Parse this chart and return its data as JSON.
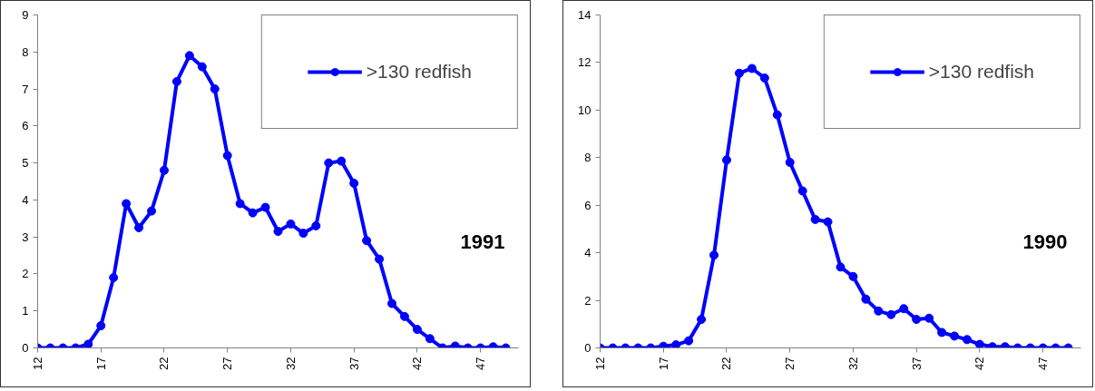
{
  "chart_data": [
    {
      "type": "line",
      "x": [
        12,
        13,
        14,
        15,
        16,
        17,
        18,
        19,
        20,
        21,
        22,
        23,
        24,
        25,
        26,
        27,
        28,
        29,
        30,
        31,
        32,
        33,
        34,
        35,
        36,
        37,
        38,
        39,
        40,
        41,
        42,
        43,
        44,
        45,
        46,
        47,
        48,
        49
      ],
      "series": [
        {
          "name": ">130 redfish",
          "color": "#0000ff",
          "values": [
            0,
            0,
            0,
            0,
            0.1,
            0.6,
            1.9,
            3.9,
            3.25,
            3.7,
            4.8,
            7.2,
            7.9,
            7.6,
            7.0,
            5.2,
            3.9,
            3.65,
            3.8,
            3.15,
            3.35,
            3.1,
            3.3,
            5.0,
            5.05,
            4.45,
            2.9,
            2.4,
            1.2,
            0.85,
            0.5,
            0.25,
            0,
            0.05,
            0,
            0,
            0.03,
            0
          ]
        }
      ],
      "xlim": [
        12,
        50
      ],
      "xticks": [
        12,
        17,
        22,
        27,
        32,
        37,
        42,
        47
      ],
      "ylim": [
        0,
        9
      ],
      "yticks": [
        0,
        1,
        2,
        3,
        4,
        5,
        6,
        7,
        8,
        9
      ],
      "annotations": [
        "1991"
      ],
      "legend": "top right",
      "marker": "circle",
      "line_style": "solid",
      "grid": false
    },
    {
      "type": "line",
      "x": [
        12,
        13,
        14,
        15,
        16,
        17,
        18,
        19,
        20,
        21,
        22,
        23,
        24,
        25,
        26,
        27,
        28,
        29,
        30,
        31,
        32,
        33,
        34,
        35,
        36,
        37,
        38,
        39,
        40,
        41,
        42,
        43,
        44,
        45,
        46,
        47,
        48,
        49
      ],
      "series": [
        {
          "name": ">130 redfish",
          "color": "#0000ff",
          "values": [
            0,
            0,
            0,
            0,
            0,
            0.07,
            0.13,
            0.3,
            1.2,
            3.9,
            7.9,
            11.55,
            11.75,
            11.35,
            9.8,
            7.8,
            6.6,
            5.4,
            5.3,
            3.4,
            3.0,
            2.05,
            1.55,
            1.4,
            1.65,
            1.2,
            1.25,
            0.65,
            0.5,
            0.35,
            0.15,
            0.05,
            0.05,
            0,
            0,
            0,
            0,
            0
          ]
        }
      ],
      "xlim": [
        12,
        50
      ],
      "xticks": [
        12,
        17,
        22,
        27,
        32,
        37,
        42,
        47
      ],
      "ylim": [
        0,
        14
      ],
      "yticks": [
        0,
        2,
        4,
        6,
        8,
        10,
        12,
        14
      ],
      "annotations": [
        "1990"
      ],
      "legend": "top right",
      "marker": "circle",
      "line_style": "solid",
      "grid": false
    }
  ]
}
